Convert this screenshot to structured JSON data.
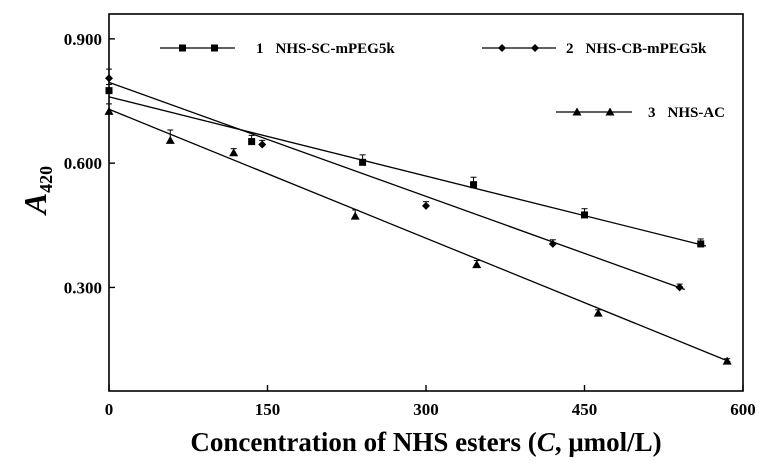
{
  "chart_data": {
    "type": "scatter",
    "title": "",
    "xlabel_prefix": "Concentration of NHS esters (",
    "xlabel_italic": "C",
    "xlabel_suffix": ", μmol/L)",
    "ylabel_main": "A",
    "ylabel_sub": "420",
    "xlim": [
      0,
      600
    ],
    "ylim": [
      0.05,
      0.96
    ],
    "x_ticks": [
      0,
      150,
      300,
      450,
      600
    ],
    "x_tick_labels": [
      "0",
      "150",
      "300",
      "450",
      "600"
    ],
    "y_ticks": [
      0.3,
      0.6,
      0.9
    ],
    "y_tick_labels": [
      "0.300",
      "0.600",
      "0.900"
    ],
    "grid": false,
    "legend_position": "top",
    "series": [
      {
        "name": "NHS-SC-mPEG5k",
        "number": "1",
        "marker": "square",
        "x": [
          0,
          135,
          240,
          345,
          450,
          560
        ],
        "y": [
          0.775,
          0.652,
          0.602,
          0.548,
          0.475,
          0.405
        ],
        "error": [
          0.015,
          0.015,
          0.018,
          0.018,
          0.015,
          0.012
        ],
        "fit": {
          "x0": 0,
          "y0": 0.76,
          "x1": 565,
          "y1": 0.4
        }
      },
      {
        "name": "NHS-CB-mPEG5k",
        "number": "2",
        "marker": "diamond",
        "x": [
          0,
          145,
          300,
          420,
          540
        ],
        "y": [
          0.805,
          0.645,
          0.497,
          0.405,
          0.3
        ],
        "error": [
          0.022,
          0.01,
          0.01,
          0.01,
          0.008
        ],
        "fit": {
          "x0": 0,
          "y0": 0.795,
          "x1": 545,
          "y1": 0.295
        }
      },
      {
        "name": "NHS-AC",
        "number": "3",
        "marker": "triangle",
        "x": [
          0,
          58,
          118,
          233,
          348,
          463,
          585
        ],
        "y": [
          0.725,
          0.655,
          0.625,
          0.472,
          0.355,
          0.238,
          0.122
        ],
        "error": [
          0.018,
          0.025,
          0.01,
          0.015,
          0.01,
          0.008,
          0.006
        ],
        "fit": {
          "x0": 0,
          "y0": 0.73,
          "x1": 588,
          "y1": 0.12
        }
      }
    ]
  }
}
